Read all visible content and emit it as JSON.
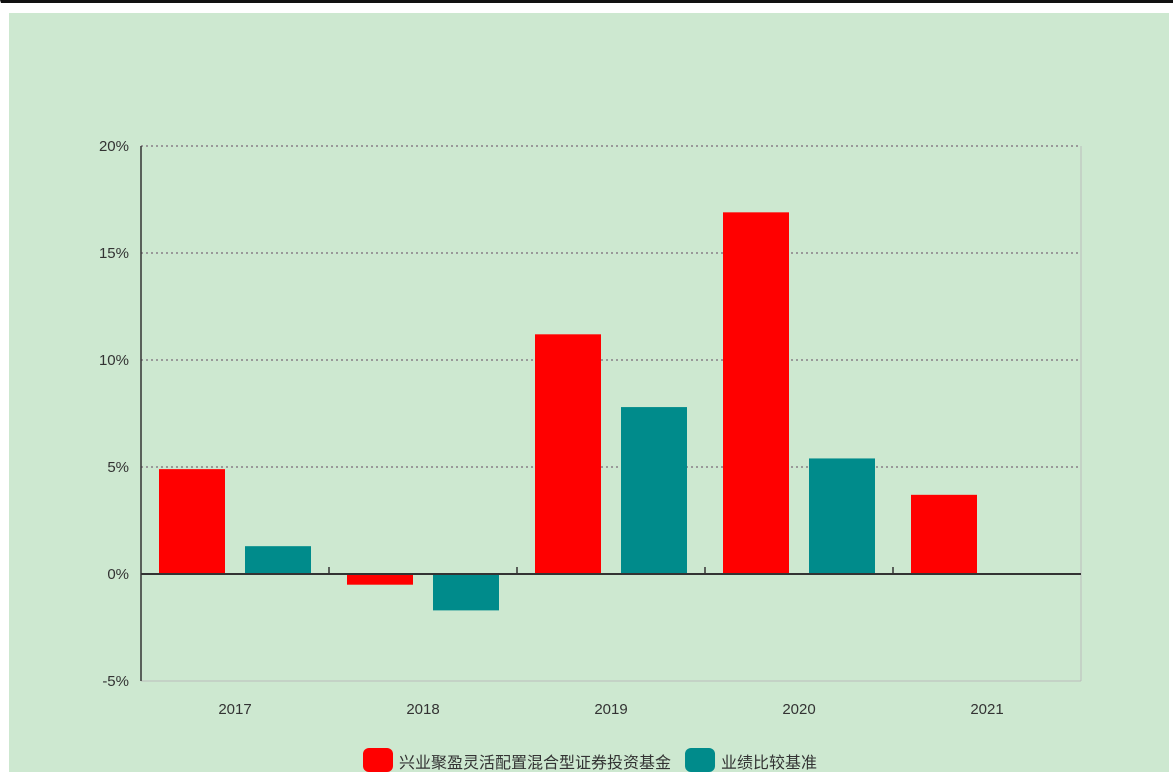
{
  "chart_data": {
    "type": "bar",
    "title": "",
    "xlabel": "",
    "ylabel": "",
    "categories": [
      "2017",
      "2018",
      "2019",
      "2020",
      "2021"
    ],
    "series": [
      {
        "name": "兴业聚盈灵活配置混合型证券投资基金",
        "color": "#ff0000",
        "values": [
          4.9,
          -0.5,
          11.2,
          16.9,
          3.7
        ]
      },
      {
        "name": "业绩比较基准",
        "color": "#008b8b",
        "values": [
          1.3,
          -1.7,
          7.8,
          5.4,
          null
        ]
      }
    ],
    "ylim": [
      -5,
      20
    ],
    "yticks": [
      "-5%",
      "0%",
      "5%",
      "10%",
      "15%",
      "20%"
    ],
    "ytick_values": [
      -5,
      0,
      5,
      10,
      15,
      20
    ],
    "grid": true,
    "legend_position": "bottom",
    "background_color": "#cde8d0",
    "grid_color": "#999999"
  }
}
